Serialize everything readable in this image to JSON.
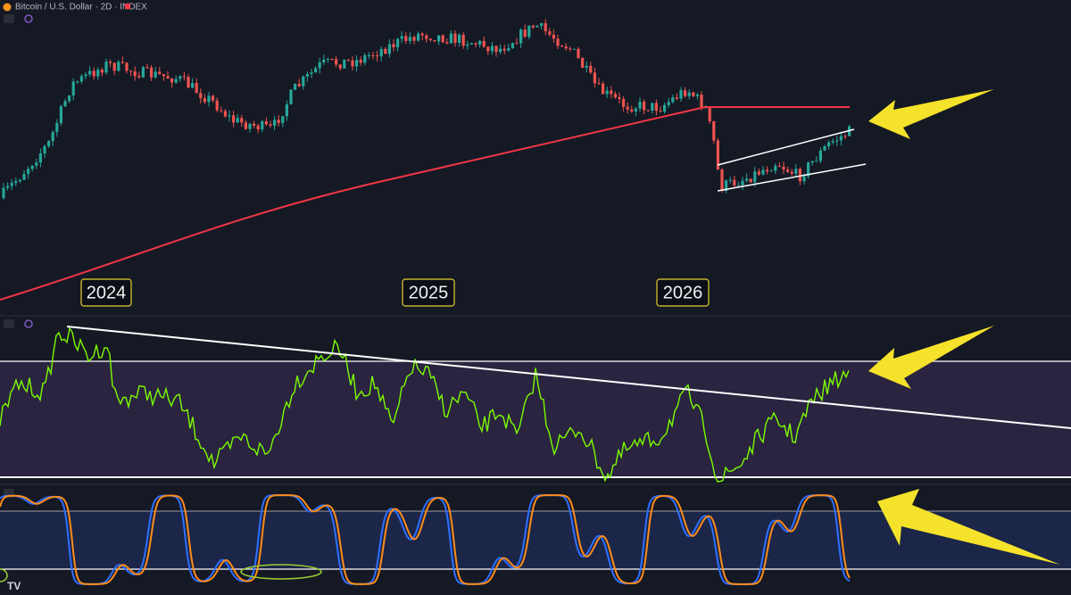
{
  "header": {
    "symbol": "Bitcoin / U.S. Dollar · 2D · INDEX"
  },
  "years": [
    "2024",
    "2025",
    "2026"
  ]
}
